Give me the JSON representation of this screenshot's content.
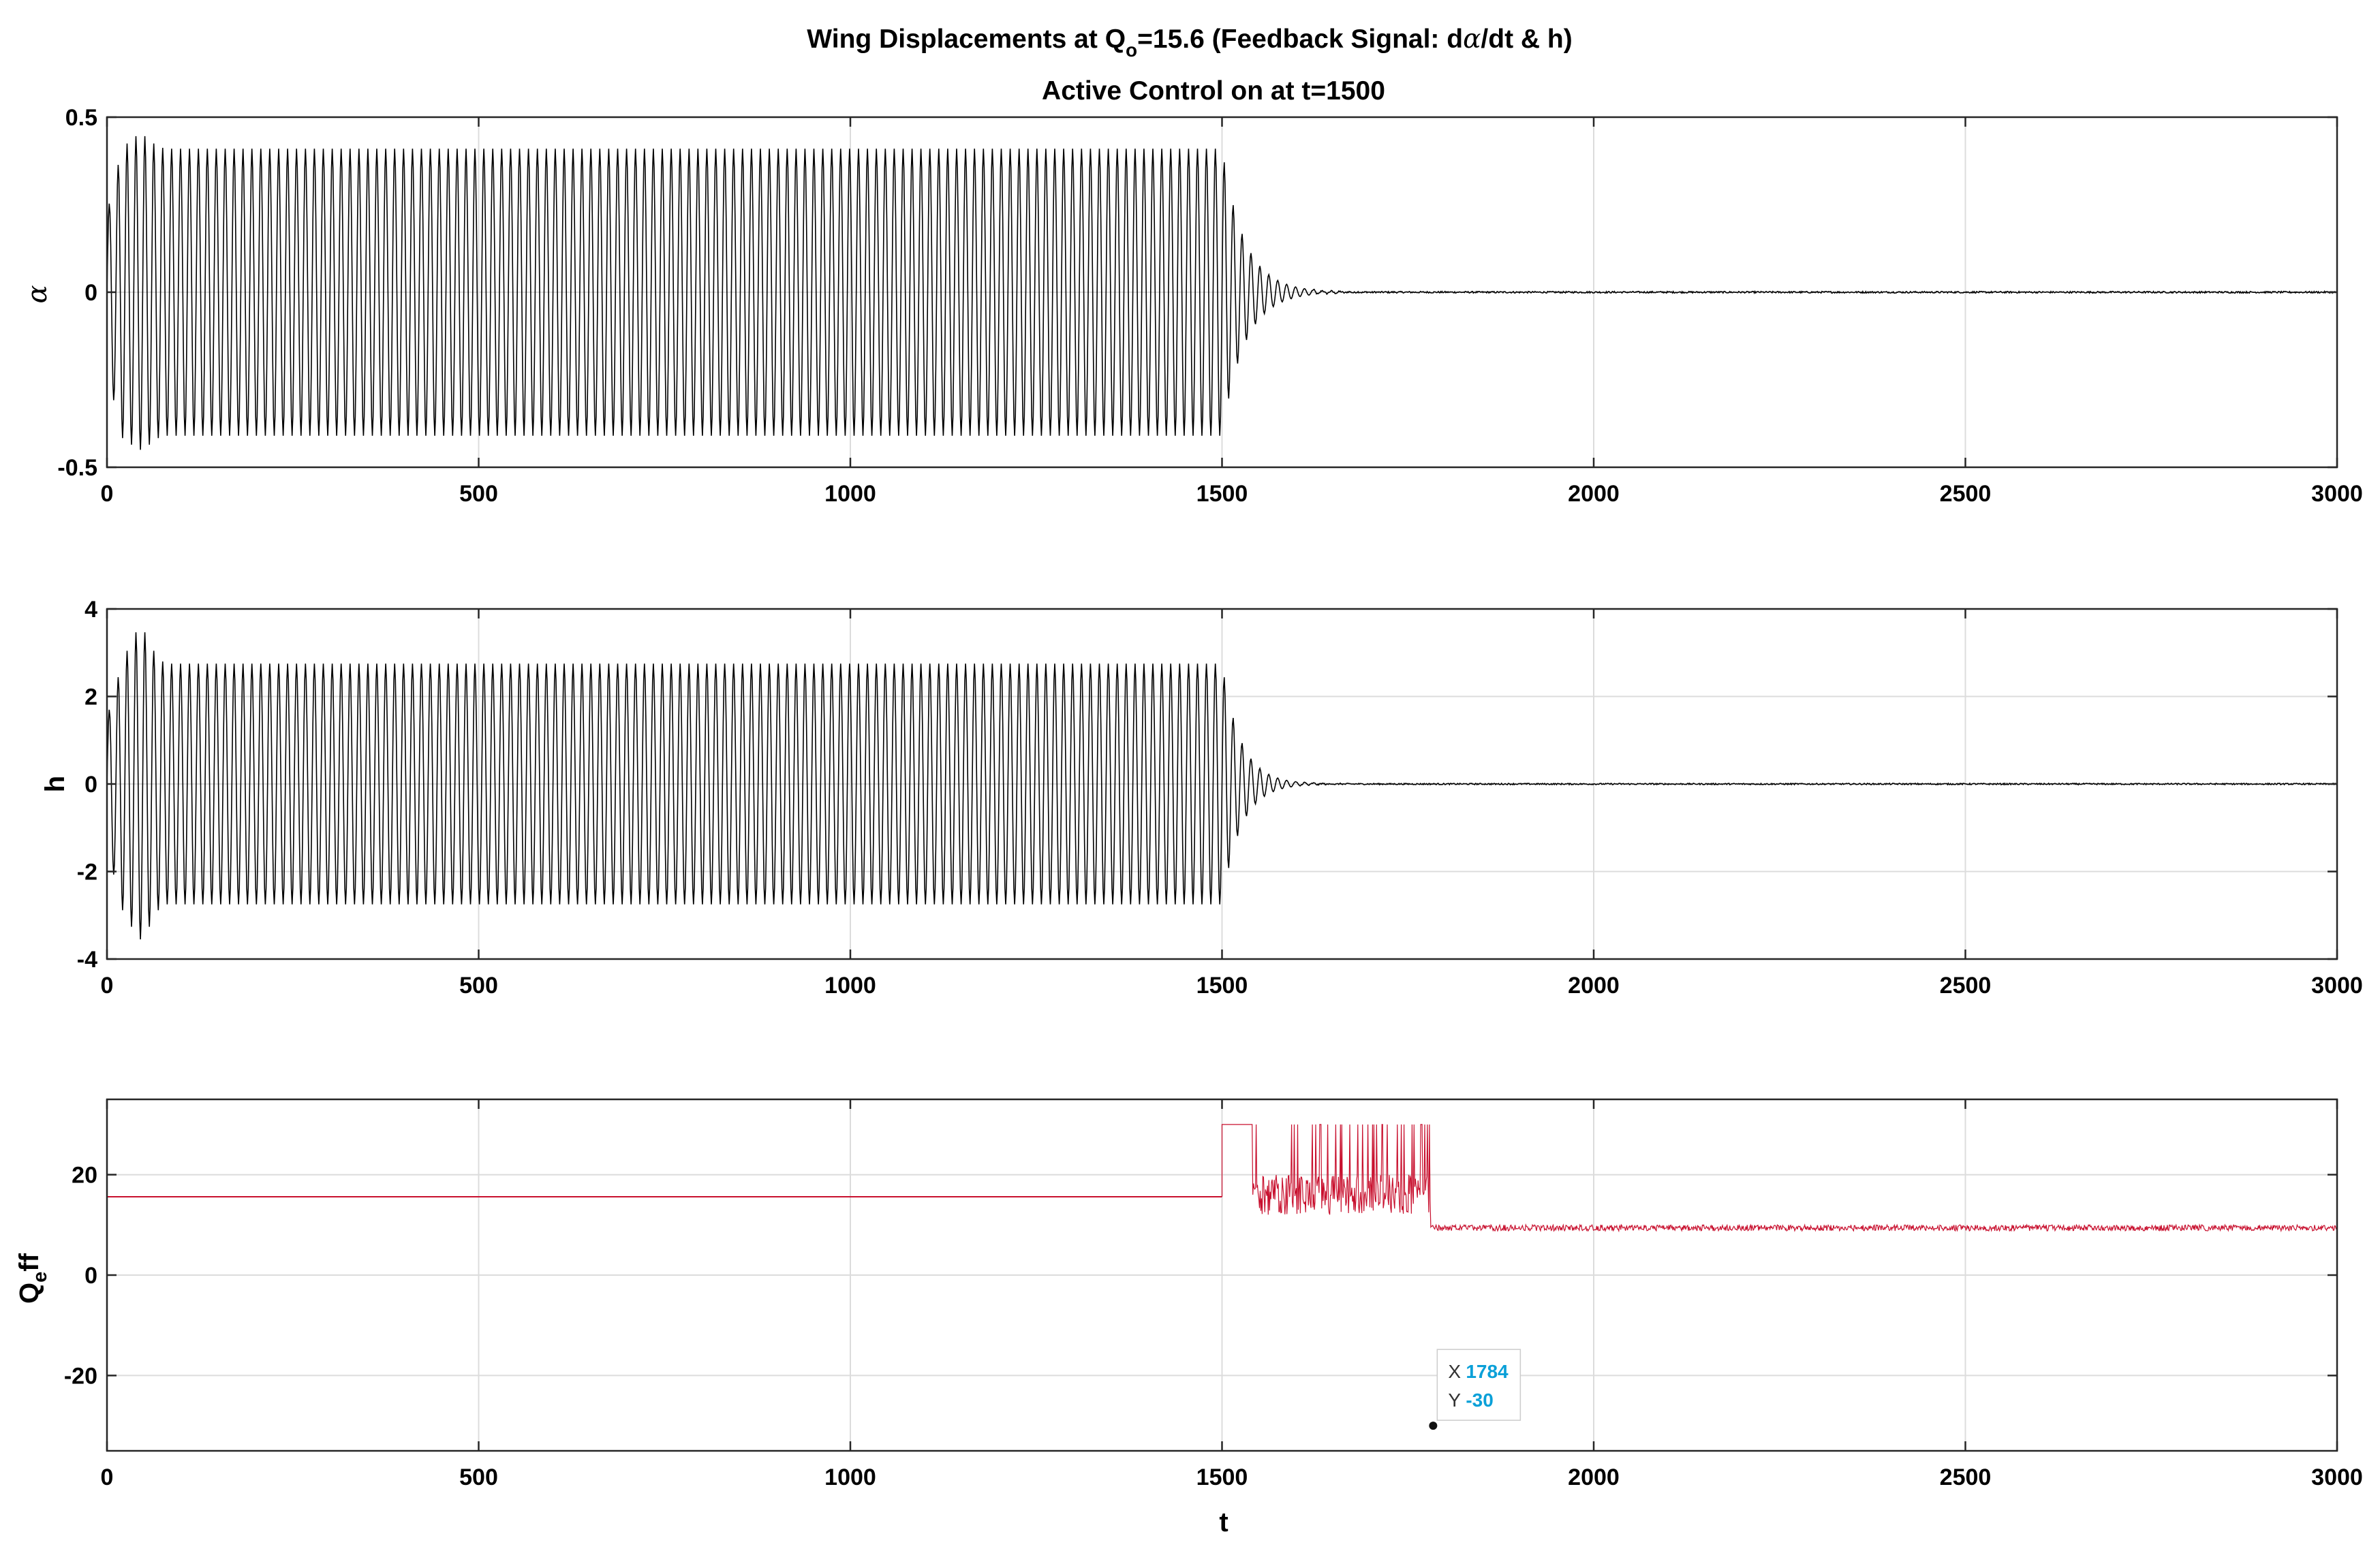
{
  "figure": {
    "title_line1_pre": "Wing Displacements  at  Q",
    "title_line1_sub": "o",
    "title_line1_mid": "=15.6 (Feedback Signal: d",
    "title_line1_greek": "α",
    "title_line1_post": "/dt & h)",
    "title_line2": "Active Control on at t=1500",
    "xlabel": "t"
  },
  "colors": {
    "response_line": "#000000",
    "control_line": "#c8102e",
    "grid": "#dcdcdc",
    "axes": "#262626",
    "datatip_value": "#0aa0d8"
  },
  "chart_data": [
    {
      "type": "line",
      "ylabel": "α",
      "xlim": [
        0,
        3000
      ],
      "ylim": [
        -0.5,
        0.5
      ],
      "xticks": [
        0,
        500,
        1000,
        1500,
        2000,
        2500,
        3000
      ],
      "yticks": [
        -0.5,
        0,
        0.5
      ],
      "xtick_labels": [
        "0",
        "500",
        "1000",
        "1500",
        "2000",
        "2500",
        "3000"
      ],
      "ytick_labels": [
        "-0.5",
        "0",
        "0.5"
      ],
      "grid": true,
      "series": [
        {
          "style": "oscillation",
          "limit_cycle_amplitude": 0.41,
          "peak_amplitude": 0.45,
          "period": 12,
          "control_on": 1500,
          "decay_end": 1620,
          "x_end": 3000
        }
      ]
    },
    {
      "type": "line",
      "ylabel": "h",
      "xlim": [
        0,
        3000
      ],
      "ylim": [
        -4,
        4
      ],
      "xticks": [
        0,
        500,
        1000,
        1500,
        2000,
        2500,
        3000
      ],
      "yticks": [
        -4,
        -2,
        0,
        2,
        4
      ],
      "xtick_labels": [
        "0",
        "500",
        "1000",
        "1500",
        "2000",
        "2500",
        "3000"
      ],
      "ytick_labels": [
        "-4",
        "-2",
        "0",
        "2",
        "4"
      ],
      "grid": true,
      "series": [
        {
          "style": "oscillation",
          "limit_cycle_amplitude": 2.75,
          "peak_amplitude": 3.55,
          "period": 12,
          "control_on": 1500,
          "decay_end": 1600,
          "x_end": 3000
        }
      ]
    },
    {
      "type": "line",
      "ylabel_main": "Q",
      "ylabel_sub": "e",
      "ylabel_post": "ff",
      "xlim": [
        0,
        3000
      ],
      "ylim": [
        -35,
        35
      ],
      "xticks": [
        0,
        500,
        1000,
        1500,
        2000,
        2500,
        3000
      ],
      "yticks": [
        -20,
        0,
        20
      ],
      "xtick_labels": [
        "0",
        "500",
        "1000",
        "1500",
        "2000",
        "2500",
        "3000"
      ],
      "ytick_labels": [
        "-20",
        "0",
        "20"
      ],
      "grid": true,
      "series": [
        {
          "style": "control",
          "constant_value": 15.6,
          "control_on": 1500,
          "saturation_upper": 30,
          "saturation_lower": -30,
          "settled_upper": 10,
          "settled_lower": -30,
          "transition_end": 1780,
          "x_end": 3000
        }
      ],
      "datatip": {
        "x_label": "X",
        "x_value": "1784",
        "y_label": "Y",
        "y_value": "-30",
        "x": 1784,
        "y": -30
      }
    }
  ]
}
